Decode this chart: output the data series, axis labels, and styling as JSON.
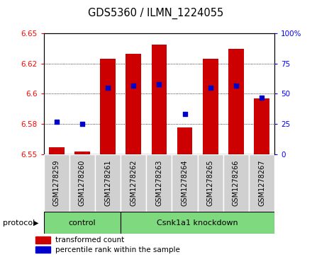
{
  "title": "GDS5360 / ILMN_1224055",
  "samples": [
    "GSM1278259",
    "GSM1278260",
    "GSM1278261",
    "GSM1278262",
    "GSM1278263",
    "GSM1278264",
    "GSM1278265",
    "GSM1278266",
    "GSM1278267"
  ],
  "bar_tops": [
    6.556,
    6.552,
    6.629,
    6.633,
    6.641,
    6.572,
    6.629,
    6.637,
    6.596
  ],
  "bar_base": 6.55,
  "blue_dots_pct": [
    27,
    25,
    55,
    57,
    58,
    33,
    55,
    57,
    47
  ],
  "ylim_left": [
    6.55,
    6.65
  ],
  "ylim_right": [
    0,
    100
  ],
  "yticks_left": [
    6.55,
    6.575,
    6.6,
    6.625,
    6.65
  ],
  "yticks_right": [
    0,
    25,
    50,
    75,
    100
  ],
  "bar_color": "#cc0000",
  "dot_color": "#0000cc",
  "control_count": 3,
  "knockdown_count": 6,
  "control_label": "control",
  "knockdown_label": "Csnk1a1 knockdown",
  "protocol_label": "protocol",
  "legend_bar_label": "transformed count",
  "legend_dot_label": "percentile rank within the sample",
  "sample_bg": "#d0d0d0",
  "group_bg": "#7FD97F",
  "group_border": "#000000",
  "plot_bg": "#ffffff"
}
